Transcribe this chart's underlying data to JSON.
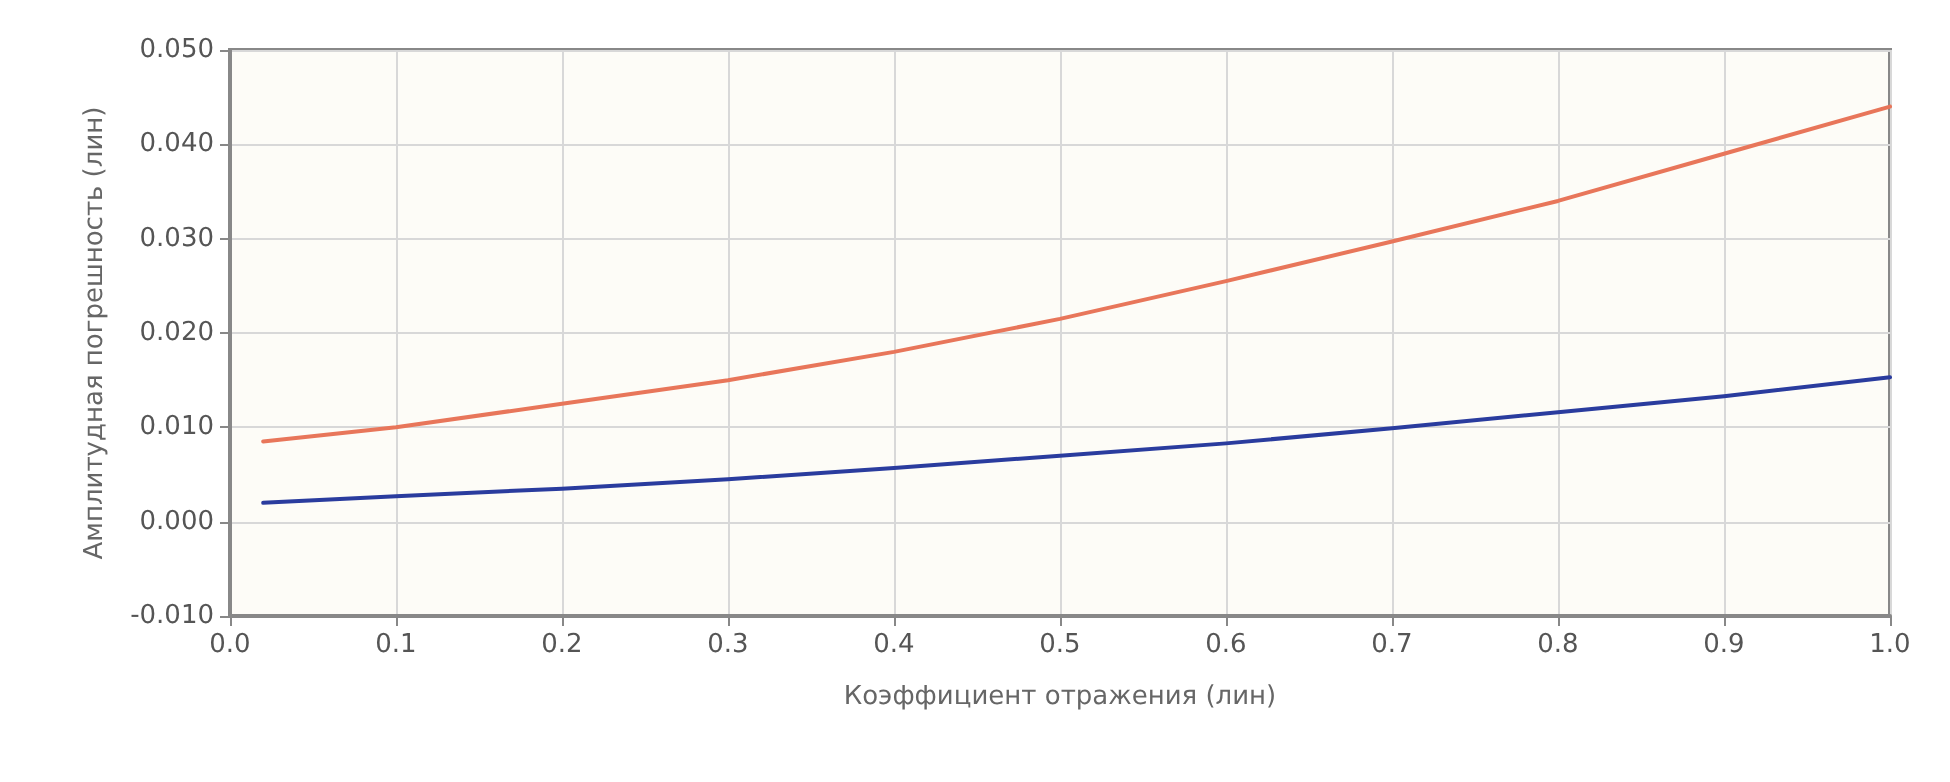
{
  "chart_data": {
    "type": "line",
    "xlabel": "Коэффициент отражения (лин)",
    "ylabel": "Амплитудная погрешность (лин)",
    "series": [
      {
        "color": "#e8765a",
        "x": [
          0.02,
          0.1,
          0.2,
          0.3,
          0.4,
          0.5,
          0.6,
          0.7,
          0.8,
          0.9,
          1.0
        ],
        "values": [
          0.0085,
          0.01,
          0.0125,
          0.015,
          0.018,
          0.0215,
          0.0255,
          0.0297,
          0.034,
          0.039,
          0.044
        ]
      },
      {
        "color": "#2a3c9e",
        "x": [
          0.02,
          0.1,
          0.2,
          0.3,
          0.4,
          0.5,
          0.6,
          0.7,
          0.8,
          0.9,
          1.0
        ],
        "values": [
          0.002,
          0.0027,
          0.0035,
          0.0045,
          0.0057,
          0.007,
          0.0083,
          0.0099,
          0.0116,
          0.0133,
          0.0153
        ]
      }
    ],
    "xlim": [
      0,
      1
    ],
    "ylim": [
      -0.01,
      0.05
    ],
    "xticks": [
      {
        "value": 0,
        "label": "0.0"
      },
      0.1,
      0.2,
      0.3,
      0.4,
      0.5,
      0.6,
      0.7,
      0.8,
      0.9,
      {
        "value": 1,
        "label": "1.0"
      }
    ],
    "yticks": [
      {
        "value": -0.01,
        "label": "-0.010"
      },
      {
        "value": 0,
        "label": "0.000"
      },
      {
        "value": 0.01,
        "label": "0.010"
      },
      {
        "value": 0.02,
        "label": "0.020"
      },
      {
        "value": 0.03,
        "label": "0.030"
      },
      {
        "value": 0.04,
        "label": "0.040"
      },
      {
        "value": 0.05,
        "label": "0.050"
      }
    ],
    "grid": true,
    "marker": "none",
    "line_style": "solid"
  }
}
